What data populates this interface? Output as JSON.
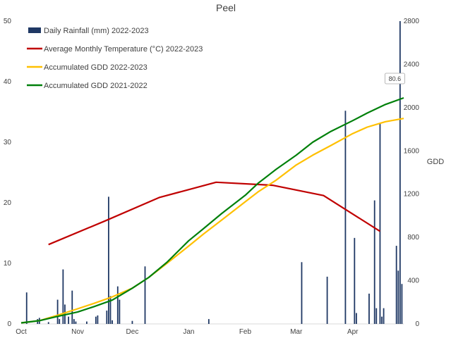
{
  "chart_data": {
    "type": "bar+line",
    "title": "Peel",
    "ylabel_right": "GDD",
    "ylim_left": [
      0,
      50
    ],
    "ylim_right": [
      0,
      2800
    ],
    "yticks_left": [
      0,
      10,
      20,
      30,
      40,
      50
    ],
    "yticks_right": [
      0,
      400,
      800,
      1200,
      1600,
      2000,
      2400,
      2800
    ],
    "xlim_days": [
      0,
      210
    ],
    "month_ticks": [
      {
        "label": "Oct",
        "day": 0
      },
      {
        "label": "Nov",
        "day": 31
      },
      {
        "label": "Dec",
        "day": 61
      },
      {
        "label": "Jan",
        "day": 92
      },
      {
        "label": "Feb",
        "day": 123
      },
      {
        "label": "Mar",
        "day": 151
      },
      {
        "label": "Apr",
        "day": 182
      }
    ],
    "legend": [
      {
        "label": "Daily Rainfall (mm) 2022-2023",
        "kind": "bar",
        "color": "#1f3864"
      },
      {
        "label": "Average Monthly Temperature (°C) 2022-2023",
        "kind": "line",
        "color": "#c00000"
      },
      {
        "label": "Accumulated GDD 2022-2023",
        "kind": "line",
        "color": "#ffc000"
      },
      {
        "label": "Accumulated GDD 2021-2022",
        "kind": "line",
        "color": "#00800a"
      }
    ],
    "callout": {
      "text": "80.6",
      "day": 209,
      "value": 80.6
    },
    "rainfall": {
      "name": "Daily Rainfall (mm) 2022-2023",
      "axis": "left",
      "color": "#1f3864",
      "points": [
        {
          "day": 3,
          "value": 5.2
        },
        {
          "day": 9,
          "value": 0.8
        },
        {
          "day": 10,
          "value": 1.0
        },
        {
          "day": 15,
          "value": 0.3
        },
        {
          "day": 20,
          "value": 4.0
        },
        {
          "day": 21,
          "value": 0.8
        },
        {
          "day": 23,
          "value": 9.0
        },
        {
          "day": 24,
          "value": 3.2
        },
        {
          "day": 26,
          "value": 1.2
        },
        {
          "day": 28,
          "value": 5.5
        },
        {
          "day": 29,
          "value": 0.8
        },
        {
          "day": 30,
          "value": 0.4
        },
        {
          "day": 36,
          "value": 0.4
        },
        {
          "day": 41,
          "value": 1.2
        },
        {
          "day": 42,
          "value": 1.4
        },
        {
          "day": 47,
          "value": 2.2
        },
        {
          "day": 48,
          "value": 21.0
        },
        {
          "day": 49,
          "value": 4.6
        },
        {
          "day": 50,
          "value": 0.6
        },
        {
          "day": 53,
          "value": 6.2
        },
        {
          "day": 54,
          "value": 4.0
        },
        {
          "day": 61,
          "value": 0.5
        },
        {
          "day": 68,
          "value": 9.5
        },
        {
          "day": 103,
          "value": 0.8
        },
        {
          "day": 154,
          "value": 10.2
        },
        {
          "day": 168,
          "value": 7.8
        },
        {
          "day": 178,
          "value": 35.2
        },
        {
          "day": 183,
          "value": 14.2
        },
        {
          "day": 184,
          "value": 1.8
        },
        {
          "day": 191,
          "value": 5.0
        },
        {
          "day": 194,
          "value": 20.4
        },
        {
          "day": 195,
          "value": 2.6
        },
        {
          "day": 197,
          "value": 33.2
        },
        {
          "day": 198,
          "value": 1.2
        },
        {
          "day": 199,
          "value": 2.6
        },
        {
          "day": 206,
          "value": 12.9
        },
        {
          "day": 207,
          "value": 8.8
        },
        {
          "day": 208,
          "value": 50.0
        },
        {
          "day": 209,
          "value": 6.6
        }
      ]
    },
    "series": [
      {
        "name": "Average Monthly Temperature (°C) 2022-2023",
        "axis": "left",
        "color": "#c00000",
        "points": [
          {
            "day": 15,
            "value": 13.1
          },
          {
            "day": 46,
            "value": 17.0
          },
          {
            "day": 76,
            "value": 20.9
          },
          {
            "day": 107,
            "value": 23.4
          },
          {
            "day": 138,
            "value": 22.9
          },
          {
            "day": 166,
            "value": 21.2
          },
          {
            "day": 197,
            "value": 15.3
          }
        ]
      },
      {
        "name": "Accumulated GDD 2022-2023",
        "axis": "right",
        "color": "#ffc000",
        "points": [
          {
            "day": 0,
            "value": 10
          },
          {
            "day": 10,
            "value": 30
          },
          {
            "day": 20,
            "value": 80
          },
          {
            "day": 31,
            "value": 140
          },
          {
            "day": 40,
            "value": 190
          },
          {
            "day": 50,
            "value": 250
          },
          {
            "day": 61,
            "value": 330
          },
          {
            "day": 70,
            "value": 430
          },
          {
            "day": 80,
            "value": 560
          },
          {
            "day": 92,
            "value": 720
          },
          {
            "day": 100,
            "value": 830
          },
          {
            "day": 110,
            "value": 960
          },
          {
            "day": 123,
            "value": 1130
          },
          {
            "day": 130,
            "value": 1220
          },
          {
            "day": 140,
            "value": 1330
          },
          {
            "day": 151,
            "value": 1470
          },
          {
            "day": 160,
            "value": 1560
          },
          {
            "day": 170,
            "value": 1650
          },
          {
            "day": 182,
            "value": 1760
          },
          {
            "day": 190,
            "value": 1820
          },
          {
            "day": 200,
            "value": 1870
          },
          {
            "day": 210,
            "value": 1900
          }
        ]
      },
      {
        "name": "Accumulated GDD 2021-2022",
        "axis": "right",
        "color": "#00800a",
        "points": [
          {
            "day": 0,
            "value": 10
          },
          {
            "day": 10,
            "value": 30
          },
          {
            "day": 20,
            "value": 70
          },
          {
            "day": 31,
            "value": 110
          },
          {
            "day": 40,
            "value": 160
          },
          {
            "day": 50,
            "value": 220
          },
          {
            "day": 61,
            "value": 330
          },
          {
            "day": 70,
            "value": 430
          },
          {
            "day": 80,
            "value": 570
          },
          {
            "day": 92,
            "value": 770
          },
          {
            "day": 100,
            "value": 880
          },
          {
            "day": 110,
            "value": 1020
          },
          {
            "day": 123,
            "value": 1190
          },
          {
            "day": 130,
            "value": 1300
          },
          {
            "day": 140,
            "value": 1430
          },
          {
            "day": 151,
            "value": 1560
          },
          {
            "day": 160,
            "value": 1680
          },
          {
            "day": 170,
            "value": 1780
          },
          {
            "day": 182,
            "value": 1880
          },
          {
            "day": 190,
            "value": 1950
          },
          {
            "day": 200,
            "value": 2030
          },
          {
            "day": 210,
            "value": 2090
          }
        ]
      }
    ]
  }
}
